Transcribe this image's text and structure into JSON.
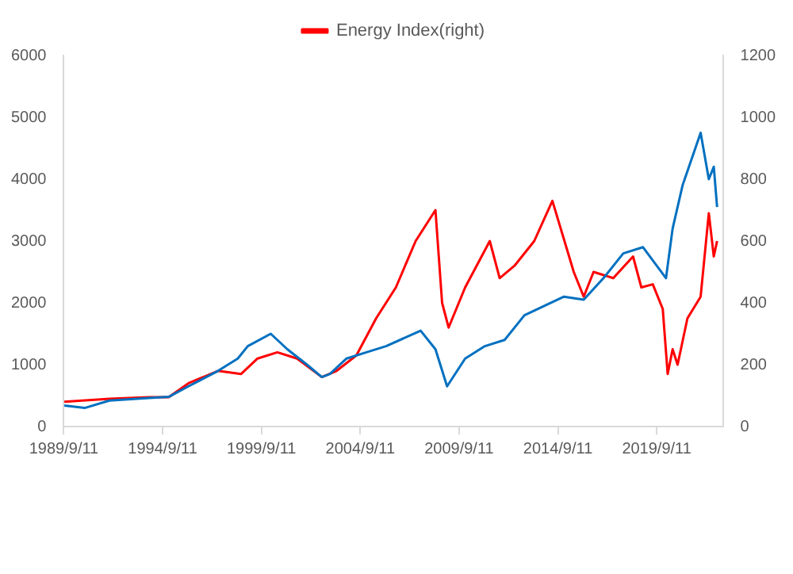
{
  "chart_data": {
    "type": "line",
    "legend": "top",
    "grid": false,
    "marker": "none",
    "line_style": "solid",
    "xlim": [
      "1989-09-11",
      "2023-01-15"
    ],
    "xticks": [
      {
        "value": "1989-09-11",
        "label": "1989/9/11"
      },
      {
        "value": "1994-09-11",
        "label": "1994/9/11"
      },
      {
        "value": "1999-09-11",
        "label": "1999/9/11"
      },
      {
        "value": "2004-09-11",
        "label": "2004/9/11"
      },
      {
        "value": "2009-09-11",
        "label": "2009/9/11"
      },
      {
        "value": "2014-09-11",
        "label": "2014/9/11"
      },
      {
        "value": "2019-09-11",
        "label": "2019/9/11"
      }
    ],
    "ylim": [
      0,
      6000
    ],
    "yticks": [
      0,
      1000,
      2000,
      3000,
      4000,
      5000,
      6000
    ],
    "y2lim": [
      0,
      1200
    ],
    "y2ticks": [
      0,
      200,
      400,
      600,
      800,
      1000,
      1200
    ],
    "series": [
      {
        "color": "#0070c0",
        "x": [
          "1989-09-20",
          "1990-10",
          "1992-01",
          "1994-01",
          "1995-01",
          "1996-01",
          "1997-07",
          "1998-07",
          "1999-01",
          "2000-03",
          "2001-01",
          "2002-01",
          "2002-10",
          "2003-03",
          "2004-01",
          "2005-01",
          "2006-01",
          "2007-10",
          "2008-07",
          "2009-02",
          "2010-01",
          "2011-01",
          "2012-01",
          "2013-01",
          "2014-01",
          "2015-01",
          "2016-01",
          "2017-01",
          "2018-01",
          "2019-01",
          "2020-03",
          "2020-07",
          "2021-01",
          "2021-12",
          "2022-05",
          "2022-08",
          "2022-10"
        ],
        "values": [
          340,
          300,
          420,
          460,
          480,
          650,
          900,
          1100,
          1300,
          1500,
          1250,
          1000,
          800,
          850,
          1100,
          1200,
          1300,
          1550,
          1250,
          650,
          1100,
          1300,
          1400,
          1800,
          1950,
          2100,
          2050,
          2400,
          2800,
          2900,
          2400,
          3200,
          3900,
          4750,
          4000,
          4200,
          3550
        ]
      },
      {
        "name": "Energy Index(right)",
        "color": "#ff0000",
        "axis": "y2",
        "x": [
          "1989-09-20",
          "1992-01",
          "1994-01",
          "1995-01",
          "1996-01",
          "1997-07",
          "1998-09",
          "1999-07",
          "2000-07",
          "2001-07",
          "2002-10",
          "2003-07",
          "2004-07",
          "2005-07",
          "2006-07",
          "2007-07",
          "2008-07",
          "2008-11",
          "2009-03",
          "2010-01",
          "2011-04",
          "2011-10",
          "2012-07",
          "2013-07",
          "2014-06",
          "2015-07",
          "2016-01",
          "2016-07",
          "2017-07",
          "2018-07",
          "2018-12",
          "2019-07",
          "2020-01",
          "2020-04",
          "2020-07",
          "2020-10",
          "2021-04",
          "2021-12",
          "2022-05",
          "2022-08",
          "2022-10"
        ],
        "values": [
          80,
          90,
          95,
          95,
          140,
          180,
          170,
          220,
          240,
          220,
          160,
          180,
          230,
          350,
          450,
          600,
          700,
          400,
          320,
          450,
          600,
          480,
          520,
          600,
          730,
          500,
          420,
          500,
          480,
          550,
          450,
          460,
          380,
          170,
          250,
          200,
          350,
          420,
          690,
          550,
          600
        ]
      }
    ]
  }
}
